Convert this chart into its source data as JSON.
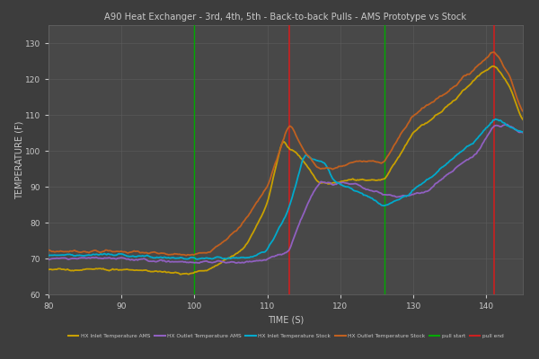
{
  "title": "A90 Heat Exchanger - 3rd, 4th, 5th - Back-to-back Pulls - AMS Prototype vs Stock",
  "xlabel": "TIME (S)",
  "ylabel": "TEMPERATURE (F)",
  "bg_color": "#3d3d3d",
  "plot_bg_color": "#484848",
  "grid_color": "#5c5c5c",
  "text_color": "#c8c8c8",
  "xlim": [
    80,
    145
  ],
  "ylim": [
    60,
    135
  ],
  "xticks": [
    80,
    90,
    100,
    110,
    120,
    130,
    140
  ],
  "yticks": [
    60,
    70,
    80,
    90,
    100,
    110,
    120,
    130
  ],
  "red_vlines": [
    113,
    141
  ],
  "green_vlines": [
    100,
    126
  ],
  "legend_labels": [
    "HX Inlet Temperature AMS",
    "HX Outlet Temperature AMS",
    "HX Inlet Temperature Stock",
    "HX Outlet Temperature Stock",
    "pull start",
    "pull end"
  ],
  "legend_colors": [
    "#c8a000",
    "#9060c0",
    "#00aacc",
    "#c06020",
    "#00aa00",
    "#cc2020"
  ],
  "line_configs": [
    {
      "color": "#c8a000",
      "lw": 1.3
    },
    {
      "color": "#9060c0",
      "lw": 1.3
    },
    {
      "color": "#00aacc",
      "lw": 1.3
    },
    {
      "color": "#c06020",
      "lw": 1.3
    }
  ]
}
